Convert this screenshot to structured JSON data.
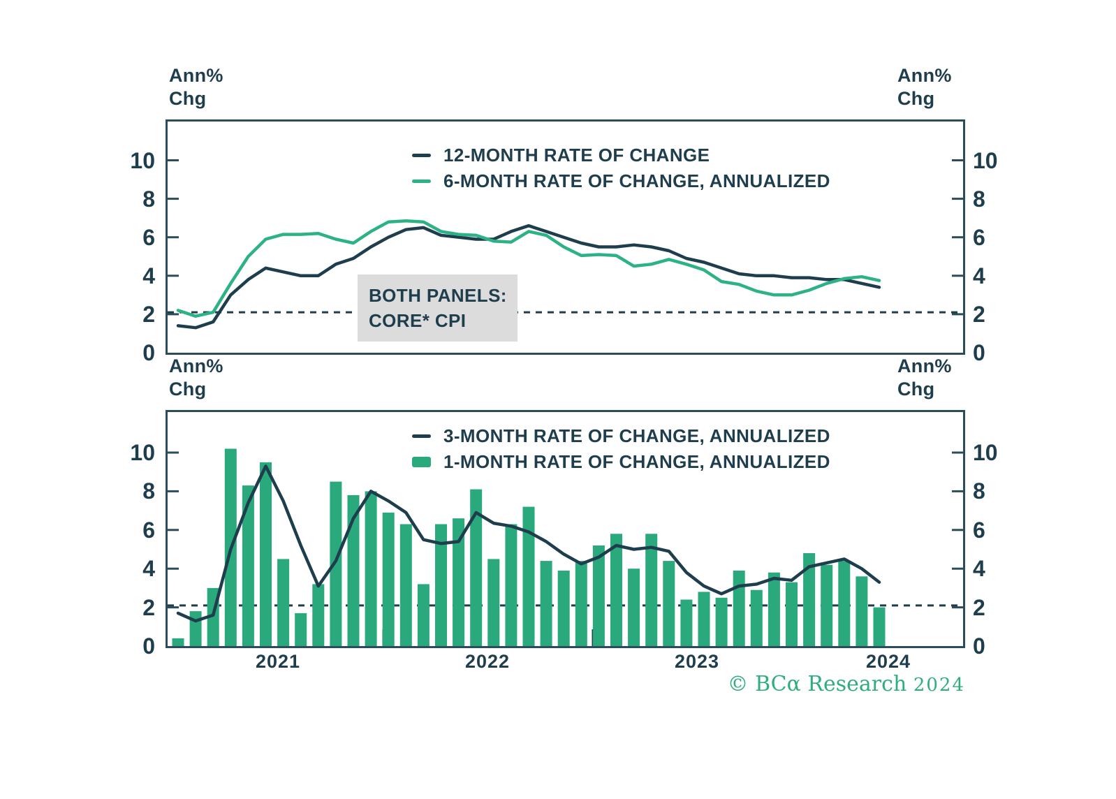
{
  "axis_unit": {
    "line1": "Ann%",
    "line2": "Chg"
  },
  "top_panel": {
    "legend": [
      {
        "label": "12-MONTH RATE OF CHANGE",
        "type": "line",
        "color": "#1e3d4d"
      },
      {
        "label": "6-MONTH RATE OF CHANGE, ANNUALIZED",
        "type": "line",
        "color": "#2cb286"
      }
    ]
  },
  "bottom_panel": {
    "legend": [
      {
        "label": "3-MONTH RATE OF CHANGE, ANNUALIZED",
        "type": "line",
        "color": "#1e3d4d"
      },
      {
        "label": "1-MONTH RATE OF CHANGE, ANNUALIZED",
        "type": "bar",
        "color": "#2aa97c"
      }
    ]
  },
  "note": {
    "line1": "BOTH PANELS:",
    "line2": "CORE* CPI"
  },
  "x_axis_years": [
    "2021",
    "2022",
    "2023",
    "2024"
  ],
  "footer": {
    "brand": "© BCα Research",
    "year": "2024"
  },
  "colors": {
    "ink": "#1e3d4d",
    "axis": "#2c4c59",
    "bar_green": "#2aa97c",
    "line_green": "#2cb286",
    "footer_green": "#2fad7c",
    "note_bg": "#dcdcdc"
  },
  "chart_data": [
    {
      "type": "line",
      "panel": "top",
      "ylabel": "Ann% Chg",
      "ylim": [
        0,
        12
      ],
      "yticks": [
        0,
        2,
        4,
        6,
        8,
        10
      ],
      "dashed_reference_value": 2.1,
      "grid": false,
      "legend_position": "top-center",
      "x": [
        "2021-01",
        "2021-02",
        "2021-03",
        "2021-04",
        "2021-05",
        "2021-06",
        "2021-07",
        "2021-08",
        "2021-09",
        "2021-10",
        "2021-11",
        "2021-12",
        "2022-01",
        "2022-02",
        "2022-03",
        "2022-04",
        "2022-05",
        "2022-06",
        "2022-07",
        "2022-08",
        "2022-09",
        "2022-10",
        "2022-11",
        "2022-12",
        "2023-01",
        "2023-02",
        "2023-03",
        "2023-04",
        "2023-05",
        "2023-06",
        "2023-07",
        "2023-08",
        "2023-09",
        "2023-10",
        "2023-11",
        "2023-12",
        "2024-01",
        "2024-02",
        "2024-03",
        "2024-04",
        "2024-05"
      ],
      "series": [
        {
          "name": "12-MONTH RATE OF CHANGE",
          "color": "#1e3d4d",
          "values": [
            1.4,
            1.3,
            1.6,
            3.0,
            3.8,
            4.4,
            4.2,
            4.0,
            4.0,
            4.6,
            4.9,
            5.5,
            6.0,
            6.4,
            6.5,
            6.1,
            6.0,
            5.9,
            5.9,
            6.3,
            6.6,
            6.3,
            6.0,
            5.7,
            5.5,
            5.5,
            5.6,
            5.5,
            5.3,
            4.9,
            4.7,
            4.4,
            4.1,
            4.0,
            4.0,
            3.9,
            3.9,
            3.8,
            3.8,
            3.6,
            3.4
          ]
        },
        {
          "name": "6-MONTH RATE OF CHANGE, ANNUALIZED",
          "color": "#2cb286",
          "values": [
            2.2,
            1.9,
            2.1,
            3.6,
            5.0,
            5.9,
            6.15,
            6.15,
            6.2,
            5.9,
            5.7,
            6.3,
            6.8,
            6.85,
            6.8,
            6.3,
            6.15,
            6.1,
            5.8,
            5.75,
            6.3,
            6.1,
            5.5,
            5.05,
            5.1,
            5.05,
            4.5,
            4.6,
            4.85,
            4.6,
            4.3,
            3.7,
            3.55,
            3.2,
            3.0,
            3.0,
            3.25,
            3.6,
            3.85,
            3.95,
            3.75
          ]
        }
      ]
    },
    {
      "type": "bar",
      "panel": "bottom",
      "ylabel": "Ann% Chg",
      "ylim": [
        0,
        12
      ],
      "yticks": [
        0,
        2,
        4,
        6,
        8,
        10
      ],
      "dashed_reference_value": 2.1,
      "grid": false,
      "legend_position": "top-center",
      "x": [
        "2021-01",
        "2021-02",
        "2021-03",
        "2021-04",
        "2021-05",
        "2021-06",
        "2021-07",
        "2021-08",
        "2021-09",
        "2021-10",
        "2021-11",
        "2021-12",
        "2022-01",
        "2022-02",
        "2022-03",
        "2022-04",
        "2022-05",
        "2022-06",
        "2022-07",
        "2022-08",
        "2022-09",
        "2022-10",
        "2022-11",
        "2022-12",
        "2023-01",
        "2023-02",
        "2023-03",
        "2023-04",
        "2023-05",
        "2023-06",
        "2023-07",
        "2023-08",
        "2023-09",
        "2023-10",
        "2023-11",
        "2023-12",
        "2024-01",
        "2024-02",
        "2024-03",
        "2024-04",
        "2024-05"
      ],
      "series": [
        {
          "name": "1-MONTH RATE OF CHANGE, ANNUALIZED",
          "type": "bar",
          "color": "#2aa97c",
          "values": [
            0.4,
            1.8,
            3.0,
            10.2,
            8.3,
            9.5,
            4.5,
            1.7,
            3.2,
            8.5,
            7.8,
            8.0,
            6.9,
            6.3,
            3.2,
            6.3,
            6.6,
            8.1,
            4.5,
            6.3,
            7.2,
            4.4,
            3.9,
            4.4,
            5.2,
            5.8,
            4.0,
            5.8,
            4.4,
            2.4,
            2.8,
            2.5,
            3.9,
            2.9,
            3.8,
            3.3,
            4.8,
            4.2,
            4.4,
            3.6,
            2.0
          ]
        },
        {
          "name": "3-MONTH RATE OF CHANGE, ANNUALIZED",
          "type": "line",
          "color": "#1e3d4d",
          "values": [
            1.7,
            1.3,
            1.6,
            5.0,
            7.4,
            9.3,
            7.5,
            5.2,
            3.1,
            4.4,
            6.6,
            8.0,
            7.5,
            6.9,
            5.5,
            5.3,
            5.4,
            6.9,
            6.35,
            6.2,
            5.9,
            5.4,
            4.75,
            4.25,
            4.6,
            5.2,
            5.0,
            5.1,
            4.9,
            3.8,
            3.1,
            2.7,
            3.1,
            3.2,
            3.5,
            3.4,
            4.1,
            4.3,
            4.5,
            4.0,
            3.3
          ]
        }
      ]
    }
  ]
}
